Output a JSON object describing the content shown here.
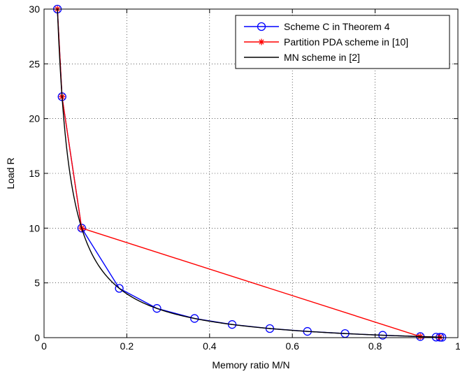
{
  "chart_data": {
    "type": "line",
    "title": "",
    "xlabel": "Memory ratio M/N",
    "ylabel": "Load R",
    "xlim": [
      0,
      1
    ],
    "ylim": [
      0,
      30
    ],
    "x_ticks": [
      0,
      0.2,
      0.4,
      0.6,
      0.8,
      1
    ],
    "x_tick_labels": [
      "0",
      "0.2",
      "0.4",
      "0.6",
      "0.8",
      "1"
    ],
    "y_ticks": [
      0,
      5,
      10,
      15,
      20,
      25,
      30
    ],
    "y_tick_labels": [
      "0",
      "5",
      "10",
      "15",
      "20",
      "25",
      "30"
    ],
    "grid": true,
    "legend_position": "top-right",
    "series": [
      {
        "name": "Scheme C in Theorem 4",
        "color": "#0000ff",
        "marker": "circle",
        "x": [
          0.0323,
          0.0435,
          0.0909,
          0.1818,
          0.2727,
          0.3636,
          0.4545,
          0.5455,
          0.6364,
          0.7273,
          0.8182,
          0.9091,
          0.9474,
          0.9565,
          0.9615
        ],
        "y": [
          30,
          22,
          10,
          4.5,
          2.67,
          1.75,
          1.2,
          0.83,
          0.57,
          0.375,
          0.22,
          0.1,
          0.05,
          0.04,
          0.03
        ]
      },
      {
        "name": "Partition PDA scheme in [10]",
        "color": "#ff0000",
        "marker": "star",
        "x": [
          0.0323,
          0.0435,
          0.0909,
          0.9091,
          0.9565
        ],
        "y": [
          30,
          22,
          10,
          0.1,
          0.04
        ]
      },
      {
        "name": "MN scheme in [2]",
        "color": "#000000",
        "marker": "none",
        "curve": "R = (1 - M/N) / (M/N)",
        "x_range": [
          0.0323,
          0.9615
        ]
      }
    ]
  }
}
